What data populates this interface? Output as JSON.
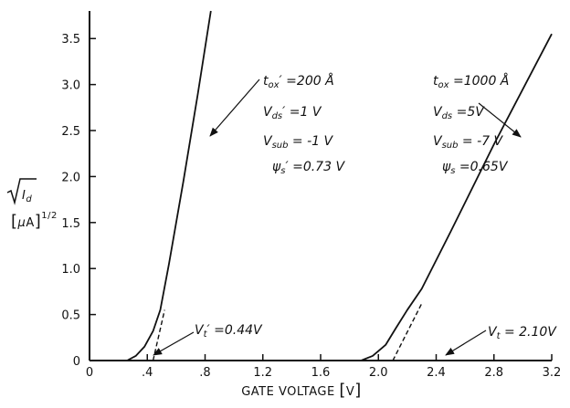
{
  "chart_data": {
    "type": "line",
    "xlabel": "GATE VOLTAGE [V]",
    "ylabel_top": "√I_d",
    "ylabel_bottom": "[μA]^1/2",
    "xlim": [
      0,
      3.2
    ],
    "ylim": [
      0,
      3.8
    ],
    "xticks": [
      0,
      0.4,
      0.8,
      1.2,
      1.6,
      2.0,
      2.4,
      2.8,
      3.2
    ],
    "xtick_labels": [
      "0",
      ".4",
      ".8",
      "1.2",
      "1.6",
      "2.0",
      "2.4",
      "2.8",
      "3.2"
    ],
    "yticks": [
      0,
      0.5,
      1.0,
      1.5,
      2.0,
      2.5,
      3.0,
      3.5
    ],
    "ytick_labels": [
      "0",
      "0.5",
      "1.0",
      "1.5",
      "2.0",
      "2.5",
      "3.0",
      "3.5"
    ],
    "grid": false,
    "series": [
      {
        "x": [
          0.26,
          0.32,
          0.38,
          0.44,
          0.49,
          0.55,
          0.65,
          0.75,
          0.84
        ],
        "y": [
          0.0,
          0.05,
          0.15,
          0.32,
          0.55,
          1.05,
          1.95,
          2.9,
          3.8
        ],
        "extrapolated": {
          "x": [
            0.44,
            0.52
          ],
          "y": [
            0.0,
            0.55
          ]
        }
      },
      {
        "x": [
          1.88,
          1.96,
          2.05,
          2.12,
          2.2,
          2.3,
          2.5,
          2.8,
          3.2
        ],
        "y": [
          0.0,
          0.05,
          0.17,
          0.35,
          0.55,
          0.78,
          1.4,
          2.35,
          3.55
        ],
        "extrapolated": {
          "x": [
            2.1,
            2.3
          ],
          "y": [
            0.0,
            0.62
          ]
        }
      }
    ],
    "annotations": {
      "left": {
        "lines": [
          "t_ox′ =200 Å",
          "V_ds′ =1 V",
          "V_sub′ = -1 V",
          "ψ_s′ =0.73 V"
        ],
        "vt": "V_t′ =0.44V"
      },
      "right": {
        "lines": [
          "t_ox =1000 Å",
          "V_ds =5V",
          "V_sub = -7 V",
          "ψ_s =0.65V"
        ],
        "vt": "V_t = 2.10V"
      }
    }
  }
}
